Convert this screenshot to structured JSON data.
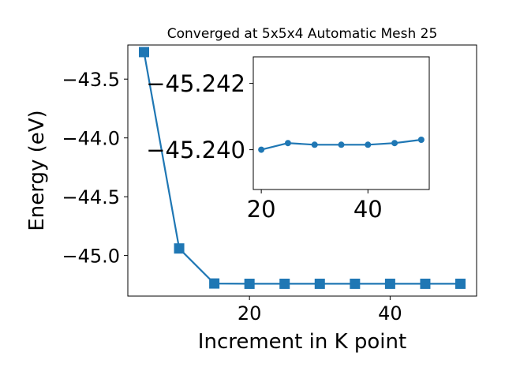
{
  "chart_data": [
    {
      "type": "line",
      "title": "Converged at 5x5x4 Automatic Mesh 25",
      "xlabel": "Increment in K point",
      "ylabel": "Energy (eV)",
      "xlim": [
        2.7,
        52.3
      ],
      "ylim": [
        -45.345,
        -43.21
      ],
      "xticks": [
        20,
        40
      ],
      "yticks": [
        -43.5,
        -44.0,
        -44.5,
        -45.0
      ],
      "ytick_labels": [
        "−43.5",
        "−44.0",
        "−44.5",
        "−45.0"
      ],
      "grid": false,
      "marker": "square",
      "color": "#1f77b4",
      "series": [
        {
          "x": [
            5,
            10,
            15,
            20,
            25,
            30,
            35,
            40,
            45,
            50
          ],
          "y": [
            -43.27,
            -44.94,
            -45.238,
            -45.2405,
            -45.2404,
            -45.2404,
            -45.2403,
            -45.2403,
            -45.2403,
            -45.2403
          ]
        }
      ]
    },
    {
      "type": "line",
      "title": "",
      "xlabel": "",
      "ylabel": "",
      "xlim": [
        18.5,
        51.5
      ],
      "ylim": [
        -45.2388,
        -45.2428
      ],
      "xticks": [
        20,
        40
      ],
      "yticks": [
        -45.242,
        -45.24
      ],
      "ytick_labels": [
        "−45.242",
        "−45.240"
      ],
      "grid": false,
      "marker": "circle",
      "color": "#1f77b4",
      "series": [
        {
          "x": [
            20,
            25,
            30,
            35,
            40,
            45,
            50
          ],
          "y": [
            -45.24,
            -45.2402,
            -45.24015,
            -45.24015,
            -45.24015,
            -45.2402,
            -45.2403
          ]
        }
      ]
    }
  ]
}
